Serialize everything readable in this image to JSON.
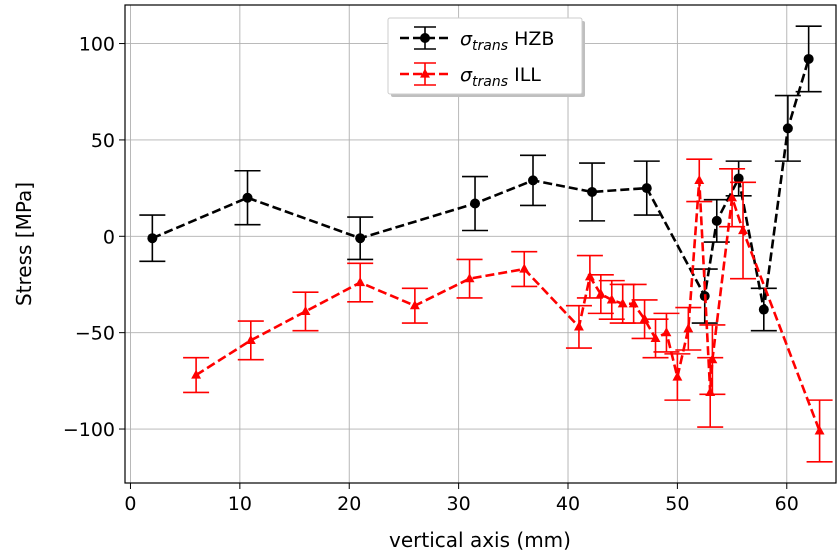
{
  "chart_data": {
    "type": "scatter",
    "xlabel": "vertical axis (mm)",
    "ylabel": "Stress [MPa]",
    "xlim": [
      -0.5,
      64.5
    ],
    "ylim": [
      -128,
      120
    ],
    "xticks": [
      0,
      10,
      20,
      30,
      40,
      50,
      60
    ],
    "yticks": [
      -100,
      -50,
      0,
      50,
      100
    ],
    "xtick_labels": [
      "0",
      "10",
      "20",
      "30",
      "40",
      "50",
      "60"
    ],
    "ytick_labels": [
      "−100",
      "−50",
      "0",
      "50",
      "100"
    ],
    "grid": true,
    "legend_position": "top-center",
    "series": [
      {
        "name": "HZB",
        "name_prefix": "σ",
        "name_subscript": "trans",
        "color": "#000000",
        "marker": "circle",
        "linestyle": "dashed",
        "points": [
          {
            "x": 2.0,
            "y": -1,
            "err": 12
          },
          {
            "x": 10.7,
            "y": 20,
            "err": 14
          },
          {
            "x": 21.0,
            "y": -1,
            "err": 11
          },
          {
            "x": 31.5,
            "y": 17,
            "err": 14
          },
          {
            "x": 36.8,
            "y": 29,
            "err": 13
          },
          {
            "x": 42.2,
            "y": 23,
            "err": 15
          },
          {
            "x": 47.2,
            "y": 25,
            "err": 14
          },
          {
            "x": 52.5,
            "y": -31,
            "err": 14
          },
          {
            "x": 53.6,
            "y": 8,
            "err": 11
          },
          {
            "x": 55.6,
            "y": 30,
            "err": 9
          },
          {
            "x": 57.9,
            "y": -38,
            "err": 11
          },
          {
            "x": 60.1,
            "y": 56,
            "err": 17
          },
          {
            "x": 62.0,
            "y": 92,
            "err": 17
          }
        ]
      },
      {
        "name": "ILL",
        "name_prefix": "σ",
        "name_subscript": "trans",
        "color": "#ff0000",
        "marker": "triangle",
        "linestyle": "dashed",
        "points": [
          {
            "x": 6.0,
            "y": -72,
            "err": 9
          },
          {
            "x": 11.0,
            "y": -54,
            "err": 10
          },
          {
            "x": 16.0,
            "y": -39,
            "err": 10
          },
          {
            "x": 21.0,
            "y": -24,
            "err": 10
          },
          {
            "x": 26.0,
            "y": -36,
            "err": 9
          },
          {
            "x": 31.0,
            "y": -22,
            "err": 10
          },
          {
            "x": 36.0,
            "y": -17,
            "err": 9
          },
          {
            "x": 41.0,
            "y": -47,
            "err": 11
          },
          {
            "x": 42.0,
            "y": -21,
            "err": 11
          },
          {
            "x": 43.0,
            "y": -30,
            "err": 10
          },
          {
            "x": 44.0,
            "y": -33,
            "err": 10
          },
          {
            "x": 45.0,
            "y": -35,
            "err": 10
          },
          {
            "x": 46.0,
            "y": -35,
            "err": 10
          },
          {
            "x": 47.0,
            "y": -43,
            "err": 10
          },
          {
            "x": 48.0,
            "y": -53,
            "err": 10
          },
          {
            "x": 49.0,
            "y": -50,
            "err": 10
          },
          {
            "x": 50.0,
            "y": -73,
            "err": 12
          },
          {
            "x": 51.0,
            "y": -48,
            "err": 11
          },
          {
            "x": 52.0,
            "y": 29,
            "err": 11
          },
          {
            "x": 53.0,
            "y": -81,
            "err": 18
          },
          {
            "x": 53.2,
            "y": -64,
            "err": 18
          },
          {
            "x": 55.0,
            "y": 20,
            "err": 15
          },
          {
            "x": 56.0,
            "y": 3,
            "err": 25
          },
          {
            "x": 63.0,
            "y": -101,
            "err": 16
          }
        ]
      }
    ]
  }
}
